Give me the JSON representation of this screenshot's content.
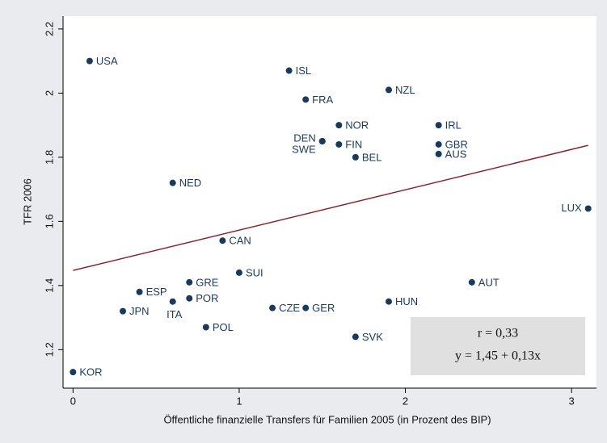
{
  "chart_data": {
    "type": "scatter",
    "x_label": "Öffentliche finanzielle Transfers für Familien 2005 (in Prozent des BIP)",
    "y_label": "TFR 2006",
    "xlim": [
      -0.06,
      3.15
    ],
    "ylim": [
      1.08,
      2.24
    ],
    "xticks": [
      0,
      1,
      2,
      3
    ],
    "yticks": [
      1.2,
      1.4,
      1.6,
      1.8,
      2,
      2.2
    ],
    "color": "#1a3a5c",
    "points": {
      "labels": [
        "USA",
        "ISL",
        "NZL",
        "FRA",
        "NOR",
        "IRL",
        "DEN",
        "SWE",
        "FIN",
        "GBR",
        "AUS",
        "BEL",
        "NED",
        "LUX",
        "CAN",
        "SUI",
        "GRE",
        "AUT",
        "ESP",
        "POR",
        "ITA",
        "HUN",
        "CZE",
        "GER",
        "JPN",
        "POL",
        "SVK",
        "KOR"
      ],
      "x": [
        0.1,
        1.3,
        1.9,
        1.4,
        1.6,
        2.2,
        1.5,
        1.5,
        1.6,
        2.2,
        2.2,
        1.7,
        0.6,
        3.1,
        0.9,
        1.0,
        0.7,
        2.4,
        0.4,
        0.7,
        0.6,
        1.9,
        1.2,
        1.4,
        0.3,
        0.8,
        1.7,
        0.0
      ],
      "y": [
        2.1,
        2.07,
        2.01,
        1.98,
        1.9,
        1.9,
        1.85,
        1.85,
        1.84,
        1.84,
        1.81,
        1.8,
        1.72,
        1.64,
        1.54,
        1.44,
        1.41,
        1.41,
        1.38,
        1.36,
        1.35,
        1.35,
        1.33,
        1.33,
        1.32,
        1.27,
        1.24,
        1.13
      ]
    },
    "fit_line": {
      "color": "#8b2332",
      "x": [
        0,
        3.1
      ],
      "y": [
        1.447,
        1.837
      ]
    },
    "annotations": [
      "r = 0,33",
      "y = 1,45 + 0,13x"
    ]
  }
}
